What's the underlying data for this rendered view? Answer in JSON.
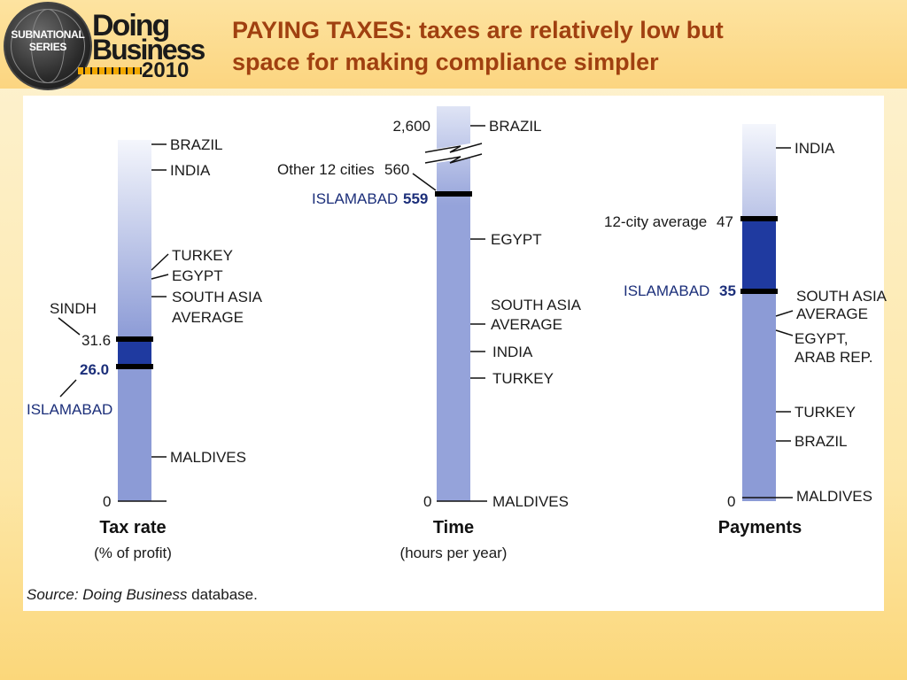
{
  "logo": {
    "series_line1": "SUBNATIONAL",
    "series_line2": "SERIES",
    "doing": "Doing",
    "business": "Business",
    "year": "2010"
  },
  "title_line1": "PAYING TAXES: taxes are relatively low but",
  "title_line2": "space for making compliance simpler",
  "source_prefix": "Source: Doing Business",
  "source_suffix": " database.",
  "chart_data": [
    {
      "type": "bar",
      "title": "Tax rate",
      "subtitle": "(% of profit)",
      "zero_label": "0",
      "markers": [
        {
          "label": "SINDH",
          "value": "31.6"
        },
        {
          "label": "ISLAMABAD",
          "value": "26.0"
        }
      ],
      "ticks": [
        {
          "label": "BRAZIL"
        },
        {
          "label": "INDIA"
        },
        {
          "label": "TURKEY"
        },
        {
          "label": "EGYPT"
        },
        {
          "label": "SOUTH ASIA",
          "label2": "AVERAGE"
        },
        {
          "label": "MALDIVES"
        }
      ]
    },
    {
      "type": "bar",
      "title": "Time",
      "subtitle": "(hours per year)",
      "zero_label": "0",
      "break_value": "2,600",
      "markers": [
        {
          "label": "Other 12 cities",
          "value": "560"
        },
        {
          "label": "ISLAMABAD",
          "value": "559"
        }
      ],
      "ticks": [
        {
          "label": "BRAZIL"
        },
        {
          "label": "EGYPT"
        },
        {
          "label": "SOUTH ASIA",
          "label2": "AVERAGE"
        },
        {
          "label": "INDIA"
        },
        {
          "label": "TURKEY"
        },
        {
          "label": "MALDIVES"
        }
      ]
    },
    {
      "type": "bar",
      "title": "Payments",
      "zero_label": "0",
      "markers": [
        {
          "label": "12-city average",
          "value": "47"
        },
        {
          "label": "ISLAMABAD",
          "value": "35"
        }
      ],
      "ticks": [
        {
          "label": "INDIA"
        },
        {
          "label": "SOUTH ASIA",
          "label2": "AVERAGE"
        },
        {
          "label": "EGYPT,",
          "label2": "ARAB REP."
        },
        {
          "label": "TURKEY"
        },
        {
          "label": "BRAZIL"
        },
        {
          "label": "MALDIVES"
        }
      ]
    }
  ]
}
